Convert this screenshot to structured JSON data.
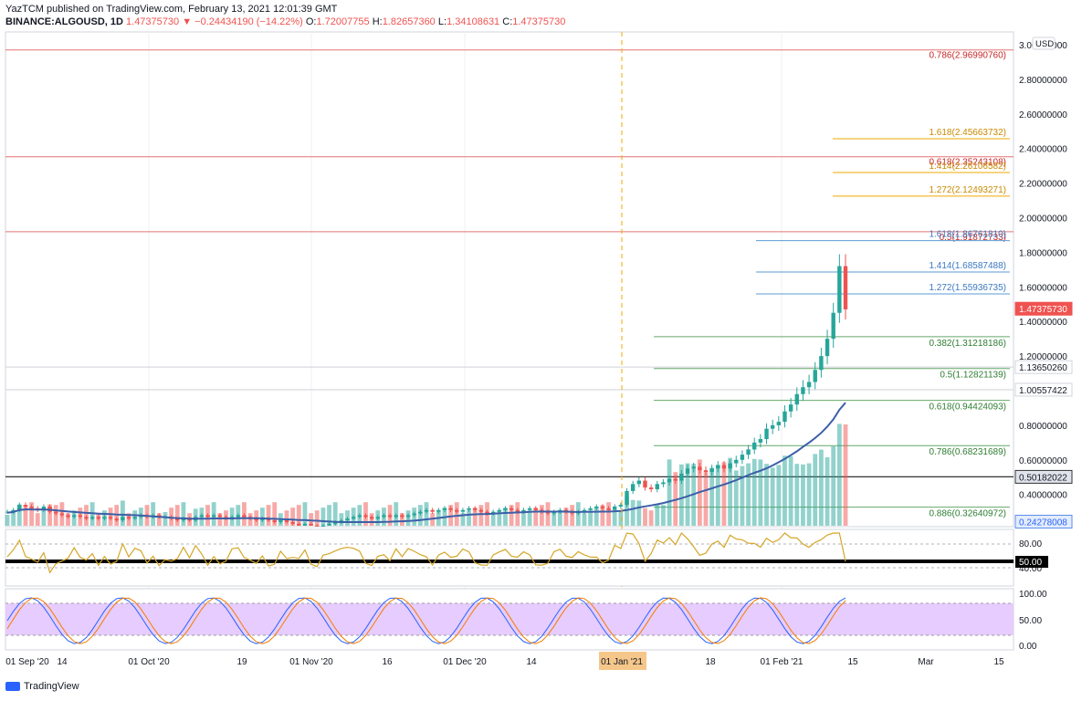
{
  "header": {
    "published": "YazTCM published on TradingView.com, February 13, 2021 12:01:39 GMT",
    "symbol": "BINANCE:ALGOUSD, 1D",
    "last": "1.47375730",
    "change": "−0.24434190 (−14.22%)",
    "o_label": "O:",
    "o": "1.72007755",
    "h_label": "H:",
    "h": "1.82657360",
    "l_label": "L:",
    "l": "1.34108631",
    "c_label": "C:",
    "c": "1.47375730"
  },
  "footer": {
    "brand": "TradingView"
  },
  "colors": {
    "red_line": "#e57373",
    "orange_fib": "#f2a900",
    "blue_fib": "#5b9bd5",
    "green_fib": "#66a86a",
    "up": "#26a69a",
    "down": "#ef5350",
    "rsi": "#d4a628",
    "stoch_band": "#e6ccff",
    "ma": "#3c5fa8",
    "price_tag": "#ef5350"
  },
  "chart_data": {
    "type": "candlestick",
    "currency": "USD",
    "y_ticks": [
      "3.00000000",
      "2.80000000",
      "2.60000000",
      "2.40000000",
      "2.20000000",
      "2.00000000",
      "1.80000000",
      "1.60000000",
      "1.40000000",
      "1.20000000",
      "1.00000000",
      "0.80000000",
      "0.60000000",
      "0.40000000"
    ],
    "y_tick_values": [
      3.0,
      2.8,
      2.6,
      2.4,
      2.2,
      2.0,
      1.8,
      1.6,
      1.4,
      1.2,
      1.0,
      0.8,
      0.6,
      0.4
    ],
    "ylim": [
      0.2,
      3.02
    ],
    "x_labels": [
      "01 Sep '20",
      "14",
      "01 Oct '20",
      "19",
      "01 Nov '20",
      "16",
      "01 Dec '20",
      "14",
      "01 Jan '21",
      "18",
      "01 Feb '21",
      "15",
      "Mar",
      "15"
    ],
    "horizontal_lines": [
      {
        "value": 2.9699076,
        "label": "0.786(2.96990760)",
        "color": "red"
      },
      {
        "value": 2.35243108,
        "label": "0.618(2.35243108)",
        "color": "red"
      },
      {
        "value": 1.91872733,
        "label": "0.5(1.91872733)",
        "color": "red"
      }
    ],
    "fib_extensions": [
      {
        "value": 2.45663732,
        "label": "1.618(2.45663732)",
        "color": "orange"
      },
      {
        "value": 2.26106582,
        "label": "1.414(2.26106582)",
        "color": "orange"
      },
      {
        "value": 2.12493271,
        "label": "1.272(2.12493271)",
        "color": "orange"
      },
      {
        "value": 1.8676181,
        "label": "1.618(1.86761810)",
        "color": "blue"
      },
      {
        "value": 1.68587488,
        "label": "1.414(1.68587488)",
        "color": "blue"
      },
      {
        "value": 1.55936735,
        "label": "1.272(1.55936735)",
        "color": "blue"
      }
    ],
    "fib_retracements": [
      {
        "value": 1.31218186,
        "label": "0.382(1.31218186)"
      },
      {
        "value": 1.12821139,
        "label": "0.5(1.12821139)"
      },
      {
        "value": 0.94424093,
        "label": "0.618(0.94424093)"
      },
      {
        "value": 0.68231689,
        "label": "0.786(0.68231689)"
      },
      {
        "value": 0.32640972,
        "label": "0.886(0.32640972)"
      }
    ],
    "price_tags": [
      {
        "value": 1.4737573,
        "label": "1.47375730",
        "style": "red"
      },
      {
        "value": 1.1365026,
        "label": "1.13650260",
        "style": "light"
      },
      {
        "value": 1.00557422,
        "label": "1.00557422",
        "style": "light"
      },
      {
        "value": 0.50182022,
        "label": "0.50182022",
        "style": "dark"
      },
      {
        "value": 0.24278008,
        "label": "0.24278008",
        "style": "blue"
      }
    ],
    "rsi": {
      "ticks": [
        "80.00",
        "50.00",
        "40.00"
      ],
      "level_tag": "50.00"
    },
    "stoch": {
      "ticks": [
        "100.00",
        "50.00",
        "0.00"
      ]
    },
    "candles_close": [
      0.3,
      0.31,
      0.34,
      0.33,
      0.32,
      0.31,
      0.33,
      0.3,
      0.29,
      0.28,
      0.27,
      0.28,
      0.27,
      0.26,
      0.27,
      0.26,
      0.27,
      0.26,
      0.25,
      0.27,
      0.26,
      0.27,
      0.28,
      0.27,
      0.28,
      0.27,
      0.27,
      0.26,
      0.25,
      0.26,
      0.25,
      0.27,
      0.28,
      0.27,
      0.28,
      0.27,
      0.26,
      0.27,
      0.28,
      0.27,
      0.26,
      0.25,
      0.26,
      0.25,
      0.24,
      0.25,
      0.24,
      0.23,
      0.22,
      0.23,
      0.22,
      0.21,
      0.22,
      0.23,
      0.24,
      0.25,
      0.26,
      0.27,
      0.28,
      0.27,
      0.26,
      0.27,
      0.28,
      0.27,
      0.28,
      0.27,
      0.28,
      0.29,
      0.3,
      0.31,
      0.3,
      0.31,
      0.32,
      0.31,
      0.3,
      0.31,
      0.32,
      0.31,
      0.3,
      0.29,
      0.3,
      0.31,
      0.32,
      0.31,
      0.3,
      0.31,
      0.32,
      0.31,
      0.3,
      0.29,
      0.3,
      0.31,
      0.3,
      0.29,
      0.3,
      0.31,
      0.32,
      0.33,
      0.32,
      0.31,
      0.33,
      0.34,
      0.42,
      0.46,
      0.48,
      0.44,
      0.43,
      0.46,
      0.47,
      0.49,
      0.48,
      0.52,
      0.55,
      0.56,
      0.54,
      0.53,
      0.55,
      0.57,
      0.55,
      0.58,
      0.6,
      0.63,
      0.66,
      0.7,
      0.72,
      0.78,
      0.8,
      0.82,
      0.88,
      0.92,
      0.98,
      1.02,
      1.05,
      1.12,
      1.2,
      1.3,
      1.45,
      1.72,
      1.47
    ]
  }
}
